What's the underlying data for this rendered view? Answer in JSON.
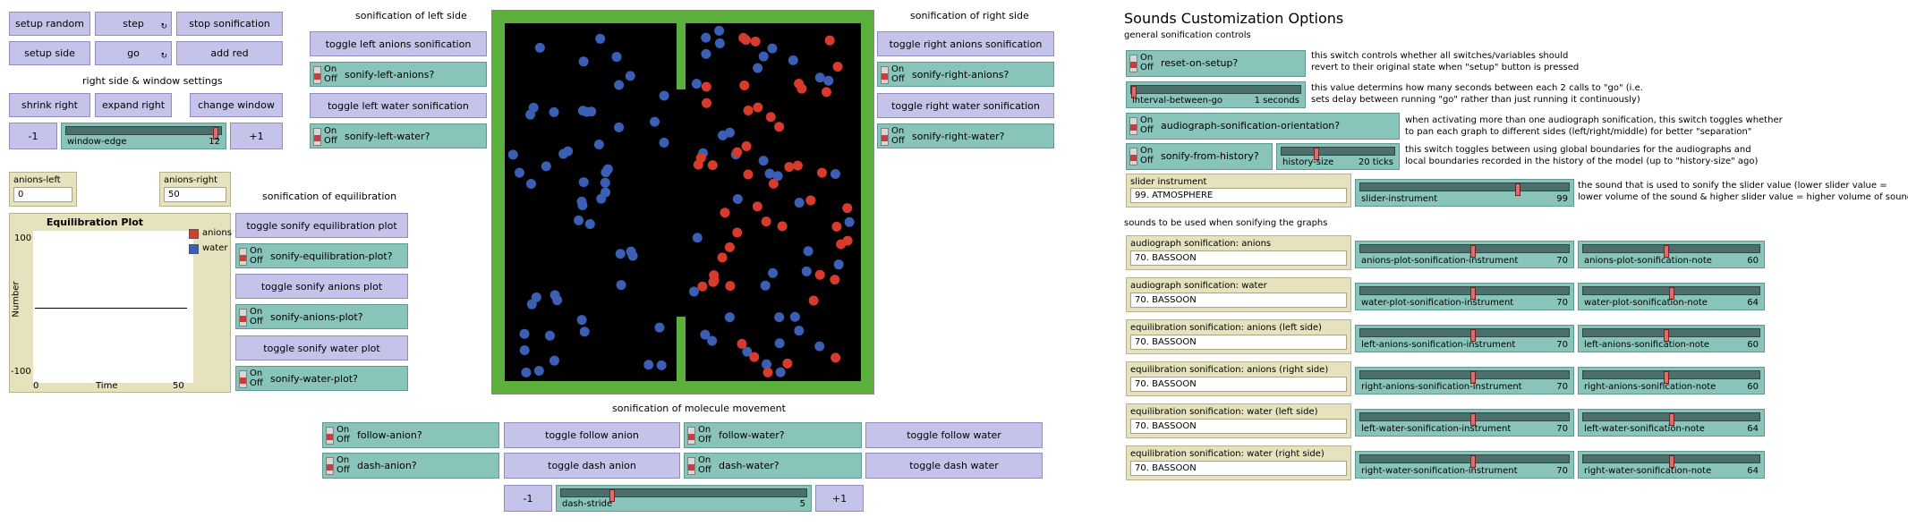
{
  "buttons": {
    "setup_random": "setup random",
    "step": "step",
    "stop_sonification": "stop sonification",
    "setup_side": "setup side",
    "go": "go",
    "add_red": "add red",
    "shrink_right": "shrink right",
    "expand_right": "expand right",
    "change_window": "change window",
    "minus1": "-1",
    "plus1": "+1",
    "toggle_left_anions": "toggle left anions sonification",
    "toggle_left_water": "toggle left water sonification",
    "toggle_right_anions": "toggle right anions sonification",
    "toggle_right_water": "toggle right water sonification",
    "toggle_sonify_equilibration": "toggle sonify equilibration plot",
    "toggle_sonify_anions": "toggle sonify anions plot",
    "toggle_sonify_water": "toggle sonify water plot",
    "toggle_follow_anion": "toggle follow anion",
    "toggle_dash_anion": "toggle dash anion",
    "toggle_follow_water": "toggle follow water",
    "toggle_dash_water": "toggle dash water",
    "forever_glyph": "↻"
  },
  "headers": {
    "right_side_window": "right side & window settings",
    "sonification_left": "sonification of left side",
    "sonification_right": "sonification of right side",
    "sonification_equilibration": "sonification of equilibration",
    "sonification_movement": "sonification of molecule movement",
    "sounds_title": "Sounds Customization Options",
    "general_controls": "general sonification controls",
    "sounds_graphs": "sounds to be used when sonifying the graphs"
  },
  "switch_on": "On",
  "switch_off": "Off",
  "switches": {
    "sonify_left_anions": "sonify-left-anions?",
    "sonify_left_water": "sonify-left-water?",
    "sonify_right_anions": "sonify-right-anions?",
    "sonify_right_water": "sonify-right-water?",
    "sonify_equilibration_plot": "sonify-equilibration-plot?",
    "sonify_anions_plot": "sonify-anions-plot?",
    "sonify_water_plot": "sonify-water-plot?",
    "follow_anion": "follow-anion?",
    "dash_anion": "dash-anion?",
    "follow_water": "follow-water?",
    "dash_water": "dash-water?",
    "reset_on_setup": "reset-on-setup?",
    "audiograph_orientation": "audiograph-sonification-orientation?",
    "sonify_from_history": "sonify-from-history?"
  },
  "sliders": {
    "window_edge": {
      "label": "window-edge",
      "value": "12",
      "fraction": 0.98
    },
    "dash_stride": {
      "label": "dash-stride",
      "value": "5",
      "fraction": 0.2
    },
    "interval_between_go": {
      "label": "interval-between-go",
      "value": "1 seconds",
      "fraction": 0.0
    },
    "history_size": {
      "label": "history-size",
      "value": "20 ticks",
      "fraction": 0.3
    },
    "slider_instrument": {
      "label": "slider-instrument",
      "value": "99",
      "fraction": 0.76
    }
  },
  "monitors": {
    "anions_left": {
      "label": "anions-left",
      "value": "0"
    },
    "anions_right": {
      "label": "anions-right",
      "value": "50"
    }
  },
  "plot": {
    "title": "Equilibration Plot",
    "ylabel": "Number",
    "xlabel": "Time",
    "y_max": "100",
    "y_min": "-100",
    "x_min": "0",
    "x_max": "50",
    "legend": [
      {
        "name": "anions",
        "color": "#d73b2e"
      },
      {
        "name": "water",
        "color": "#3b5fb5"
      }
    ]
  },
  "descriptions": {
    "reset_on_setup": [
      "this switch controls whether all switches/variables should",
      "revert to their original state when \"setup\" button is pressed"
    ],
    "interval": [
      "this value determins how many seconds between each 2 calls to \"go\" (i.e.",
      "sets delay between running \"go\" rather than just running it continuously)"
    ],
    "orientation": [
      "when activating more than one audiograph sonification, this switch toggles whether",
      "to pan each graph to different sides (left/right/middle) for better \"separation\""
    ],
    "history": [
      "this switch toggles between using global boundaries for the audiographs and",
      "local boundaries recorded in the history of the model (up to \"history-size\" ago)"
    ],
    "slider_instrument": [
      "the sound that is used to sonify the slider value (lower slider value =",
      "lower volume of the sound & higher slider value = higher volume of sound)"
    ]
  },
  "slider_instrument_chooser": {
    "title": "slider instrument",
    "value": "99. ATMOSPHERE"
  },
  "graph_sounds": [
    {
      "chooser": "audiograph sonification: anions",
      "value": "70. BASSOON",
      "instrument": {
        "label": "anions-plot-sonification-instrument",
        "value": "70",
        "fraction": 0.54
      },
      "note": {
        "label": "anions-plot-sonification-note",
        "value": "60",
        "fraction": 0.47
      }
    },
    {
      "chooser": "audiograph sonification: water",
      "value": "70. BASSOON",
      "instrument": {
        "label": "water-plot-sonification-instrument",
        "value": "70",
        "fraction": 0.54
      },
      "note": {
        "label": "water-plot-sonification-note",
        "value": "64",
        "fraction": 0.5
      }
    },
    {
      "chooser": "equilibration sonification: anions (left side)",
      "value": "70. BASSOON",
      "instrument": {
        "label": "left-anions-sonification-instrument",
        "value": "70",
        "fraction": 0.54
      },
      "note": {
        "label": "left-anions-sonification-note",
        "value": "60",
        "fraction": 0.47
      }
    },
    {
      "chooser": "equilibration sonification: anions (right side)",
      "value": "70. BASSOON",
      "instrument": {
        "label": "right-anions-sonification-instrument",
        "value": "70",
        "fraction": 0.54
      },
      "note": {
        "label": "right-anions-sonification-note",
        "value": "60",
        "fraction": 0.47
      }
    },
    {
      "chooser": "equilibration sonification: water (left side)",
      "value": "70. BASSOON",
      "instrument": {
        "label": "left-water-sonification-instrument",
        "value": "70",
        "fraction": 0.54
      },
      "note": {
        "label": "left-water-sonification-note",
        "value": "64",
        "fraction": 0.5
      }
    },
    {
      "chooser": "equilibration sonification: water (right side)",
      "value": "70. BASSOON",
      "instrument": {
        "label": "right-water-sonification-instrument",
        "value": "70",
        "fraction": 0.54
      },
      "note": {
        "label": "right-water-sonification-note",
        "value": "64",
        "fraction": 0.5
      }
    }
  ],
  "colors": {
    "anion": "#d73b2e",
    "water": "#3b5fb5",
    "membrane": "#5bb03c",
    "world_bg": "#000000"
  }
}
